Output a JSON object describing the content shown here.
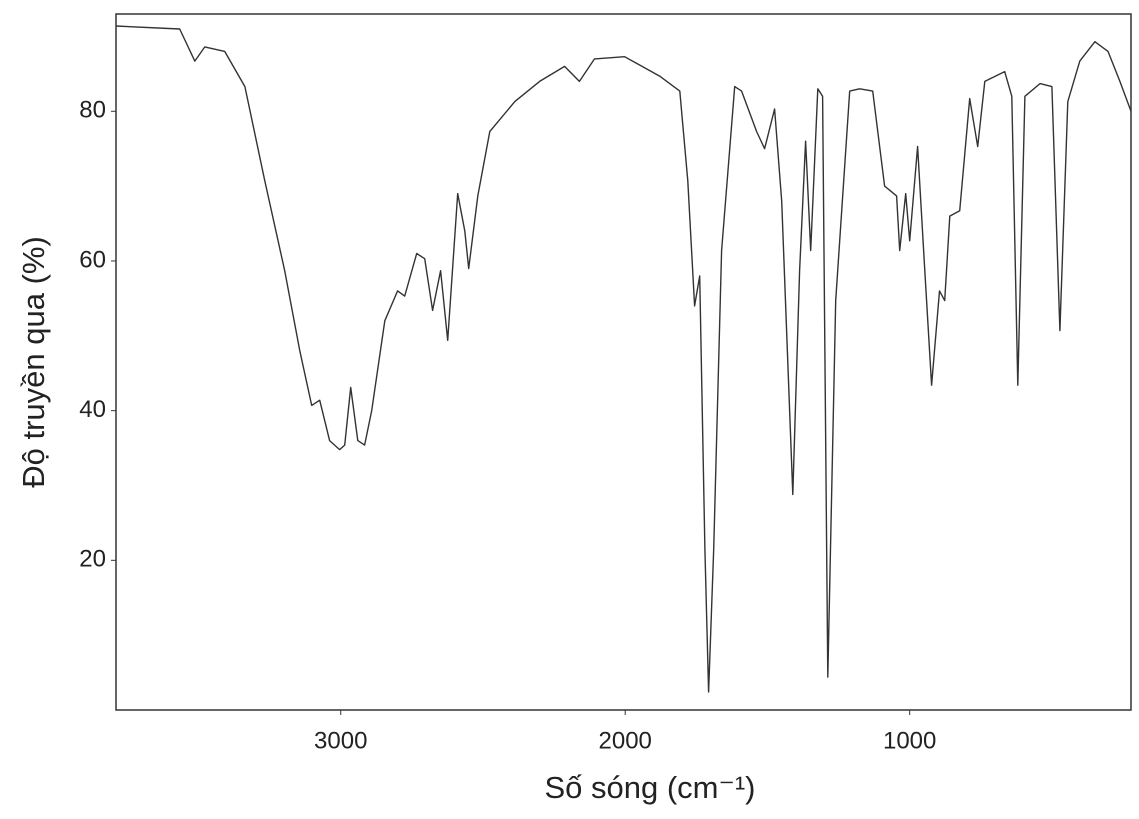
{
  "chart_data": {
    "type": "line",
    "xlabel": "Số sóng (cm⁻¹)",
    "ylabel": "Độ truyền qua (%)",
    "xlim": [
      3790,
      222
    ],
    "xticks": [
      3000,
      2000,
      1000
    ],
    "ylim": [
      0,
      93
    ],
    "yticks": [
      20,
      40,
      60,
      80
    ],
    "grid": false,
    "series": [
      {
        "color": "#333333",
        "x": [
          3791,
          3566,
          3513,
          3478,
          3408,
          3337,
          3267,
          3197,
          3144,
          3102,
          3074,
          3039,
          3004,
          2986,
          2965,
          2940,
          2916,
          2891,
          2845,
          2800,
          2775,
          2733,
          2705,
          2677,
          2649,
          2624,
          2589,
          2564,
          2550,
          2518,
          2476,
          2388,
          2301,
          2213,
          2161,
          2108,
          2002,
          1879,
          1808,
          1780,
          1756,
          1738,
          1720,
          1707,
          1689,
          1661,
          1615,
          1591,
          1538,
          1510,
          1475,
          1450,
          1411,
          1387,
          1366,
          1348,
          1323,
          1306,
          1288,
          1260,
          1211,
          1176,
          1130,
          1088,
          1046,
          1035,
          1014,
          1000,
          972,
          947,
          923,
          895,
          877,
          859,
          824,
          789,
          761,
          736,
          666,
          641,
          620,
          595,
          542,
          500,
          472,
          444,
          402,
          349,
          303,
          261,
          222
        ],
        "values": [
          91.4,
          91,
          86.7,
          88.6,
          88,
          83.3,
          70.7,
          58.7,
          48,
          40.7,
          41.4,
          36,
          34.8,
          35.4,
          43.1,
          36,
          35.4,
          40,
          52,
          56,
          55.3,
          61,
          60.3,
          53.4,
          58.7,
          49.4,
          69,
          64,
          59,
          68.7,
          77.3,
          81.3,
          84,
          86,
          84,
          87,
          87.3,
          84.7,
          82.7,
          70.7,
          54,
          58,
          21.5,
          2.4,
          21.5,
          61.4,
          83.3,
          82.7,
          77.3,
          75,
          80.3,
          68,
          28.8,
          58.7,
          76,
          61.4,
          83,
          82,
          4.4,
          54.7,
          82.7,
          83,
          82.7,
          70,
          68.7,
          61.4,
          69,
          62.7,
          75.3,
          58.7,
          43.4,
          56,
          54.7,
          66,
          66.7,
          81.7,
          75.3,
          84,
          85.3,
          82,
          43.4,
          82,
          83.7,
          83.3,
          50.7,
          81.3,
          86.7,
          89.3,
          88,
          84,
          80
        ]
      }
    ]
  }
}
